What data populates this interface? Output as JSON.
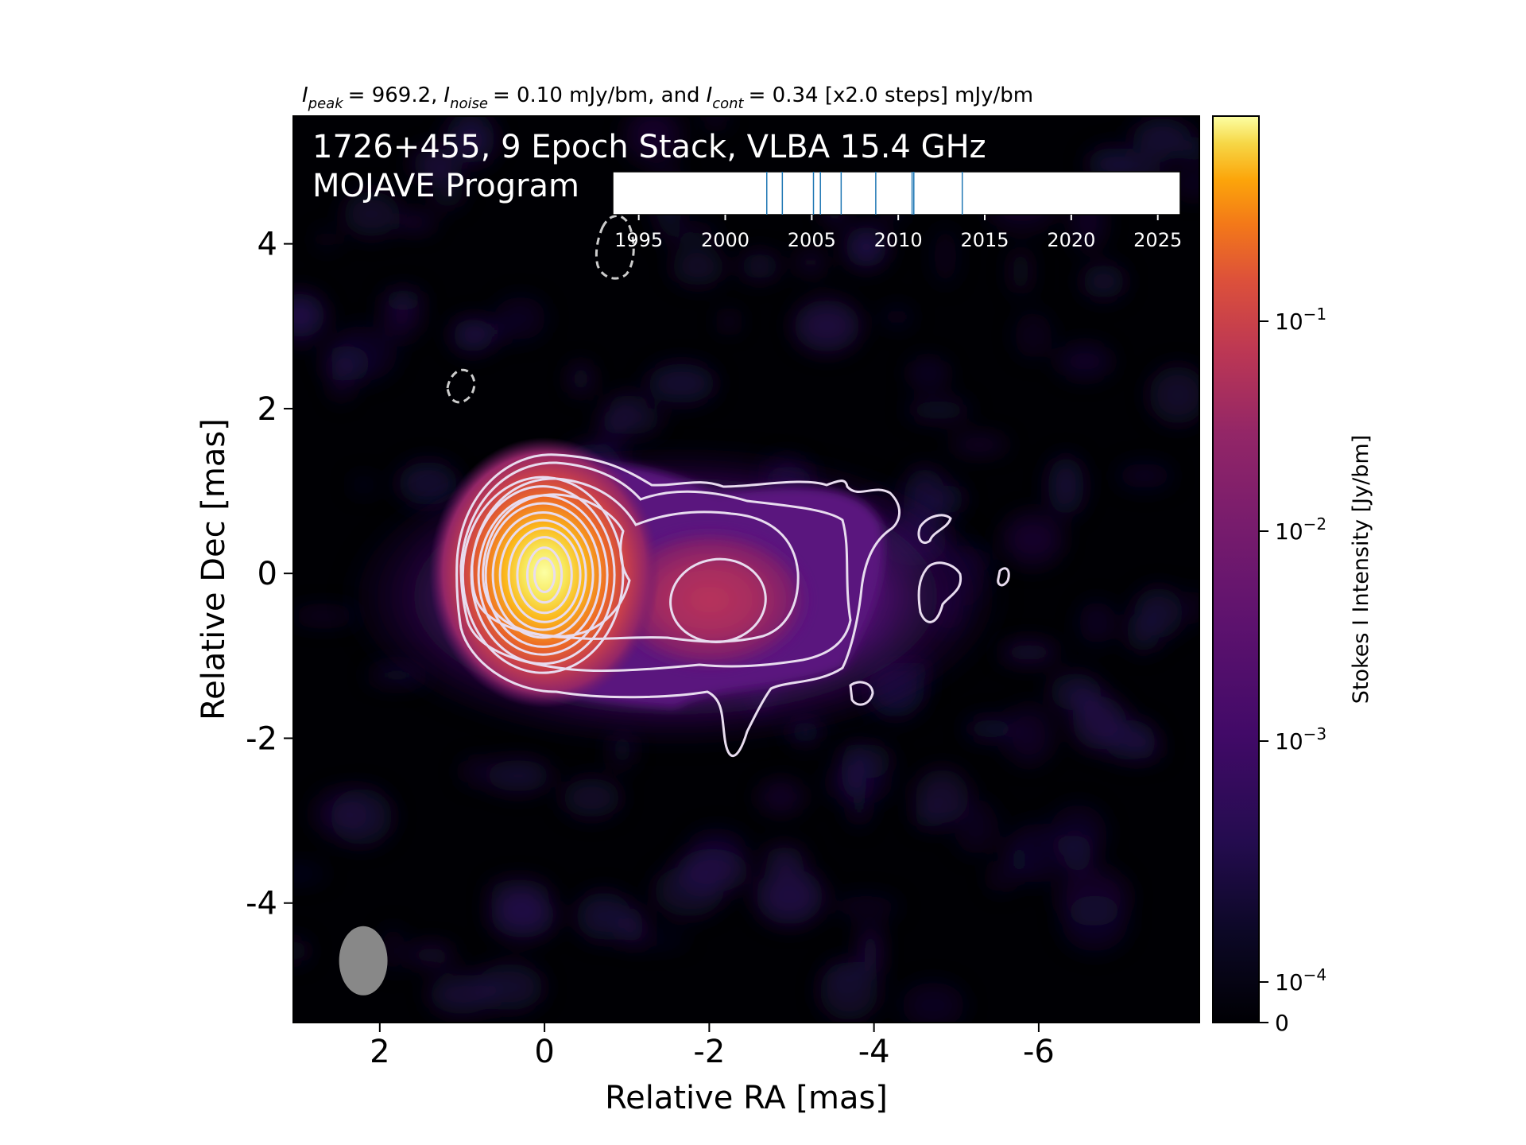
{
  "chart_data": {
    "type": "heatmap",
    "header": {
      "peak_symbol": "I",
      "peak_sub": "peak",
      "peak_value": "= 969.2,",
      "noise_symbol": "I",
      "noise_sub": "noise",
      "noise_value": "= 0.10 mJy/bm, and",
      "cont_symbol": "I",
      "cont_sub": "cont",
      "cont_value": "= 0.34 [x2.0 steps] mJy/bm"
    },
    "title_line1": "1726+455, 9 Epoch Stack, VLBA 15.4 GHz",
    "title_line2": "MOJAVE Program",
    "xlabel": "Relative RA [mas]",
    "ylabel": "Relative Dec [mas]",
    "xlim": [
      3.05,
      -7.95
    ],
    "ylim": [
      -5.45,
      5.55
    ],
    "xticks": [
      {
        "v": 2,
        "label": "2"
      },
      {
        "v": 0,
        "label": "0"
      },
      {
        "v": -2,
        "label": "-2"
      },
      {
        "v": -4,
        "label": "-4"
      },
      {
        "v": -6,
        "label": "-6"
      }
    ],
    "yticks": [
      {
        "v": 4,
        "label": "4"
      },
      {
        "v": 2,
        "label": "2"
      },
      {
        "v": 0,
        "label": "0"
      },
      {
        "v": -2,
        "label": "-2"
      },
      {
        "v": -4,
        "label": "-4"
      }
    ],
    "colorbar": {
      "label": "Stokes I Intensity [Jy/bm]",
      "scale": "log",
      "colormap": "inferno",
      "range": [
        0,
        0.9692
      ],
      "ticks": [
        {
          "v": 0.1,
          "base": "10",
          "exp": "−1"
        },
        {
          "v": 0.01,
          "base": "10",
          "exp": "−2"
        },
        {
          "v": 0.001,
          "base": "10",
          "exp": "−3"
        },
        {
          "v": 0.0001,
          "base": "10",
          "exp": "−4"
        },
        {
          "v": 0,
          "base": "0",
          "exp": ""
        }
      ]
    },
    "epoch_timeline": {
      "xlim": [
        1993.5,
        2026.3
      ],
      "ticks": [
        1995,
        2000,
        2005,
        2010,
        2015,
        2020,
        2025
      ],
      "tick_labels": [
        "1995",
        "2000",
        "2005",
        "2010",
        "2015",
        "2020",
        "2025"
      ],
      "epochs": [
        2002.4,
        2003.3,
        2005.1,
        2005.5,
        2006.7,
        2008.7,
        2010.8,
        2010.9,
        2013.7
      ],
      "line_color": "#1f77b4"
    },
    "core": {
      "x": 0.0,
      "y": 0.0
    },
    "jet_component": {
      "x": -2.1,
      "y": -0.35
    },
    "beam": {
      "x": 2.2,
      "y": -4.7,
      "major_mas": 0.8,
      "minor_mas": 0.56,
      "pa_deg": 0,
      "color": "#888888"
    },
    "peak_jy": 0.9692,
    "contour_base_mjy": 0.34,
    "contour_step": 2.0,
    "contour_levels_mjy": [
      0.34,
      0.68,
      1.36,
      2.72,
      5.44,
      10.88,
      21.76,
      43.52,
      87.04,
      174.08,
      348.16,
      696.32
    ],
    "contour_color": "#e8dcef",
    "negative_contour_color": "#cccccc",
    "colors": {
      "background": "#000004",
      "core": "#fcffa4",
      "jet": "#a52c60"
    }
  }
}
